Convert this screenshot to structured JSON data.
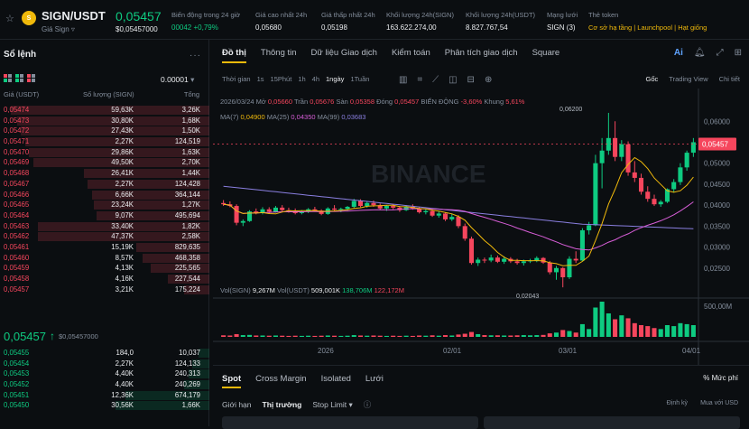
{
  "header": {
    "pair": "SIGN/USDT",
    "subtitle": "Giá Sign",
    "price": "0,05457",
    "price_usd": "$0,05457000",
    "stats": [
      {
        "label": "Biến động trong 24 giờ",
        "value": "00042 +0,79%",
        "color": "#0ecb81"
      },
      {
        "label": "Giá cao nhất 24h",
        "value": "0,05680",
        "color": "#eaecef"
      },
      {
        "label": "Giá thấp nhất 24h",
        "value": "0,05198",
        "color": "#eaecef"
      },
      {
        "label": "Khối lượng 24h(SIGN)",
        "value": "163.622.274,00",
        "color": "#eaecef"
      },
      {
        "label": "Khối lượng 24h(USDT)",
        "value": "8.827.767,54",
        "color": "#eaecef"
      },
      {
        "label": "Mạng lưới",
        "value": "SIGN (3)",
        "color": "#eaecef"
      },
      {
        "label": "Thẻ token",
        "value": "Cơ sở hạ tầng | Launchpool | Hạt giống",
        "color": "#f0b90b"
      }
    ]
  },
  "orderbook": {
    "title": "Sổ lệnh",
    "tick": "0.00001",
    "headers": {
      "price": "Giá (USDT)",
      "qty": "Số lượng (SIGN)",
      "total": "Tổng"
    },
    "asks": [
      {
        "p": "0,05474",
        "q": "59,63K",
        "t": "3,26K",
        "d": 0.95
      },
      {
        "p": "0,05473",
        "q": "30,80K",
        "t": "1,68K",
        "d": 0.92
      },
      {
        "p": "0,05472",
        "q": "27,43K",
        "t": "1,50K",
        "d": 0.9
      },
      {
        "p": "0,05471",
        "q": "2,27K",
        "t": "124,519",
        "d": 0.88
      },
      {
        "p": "0,05470",
        "q": "29,86K",
        "t": "1,63K",
        "d": 0.86
      },
      {
        "p": "0,05469",
        "q": "49,50K",
        "t": "2,70K",
        "d": 0.84
      },
      {
        "p": "0,05468",
        "q": "26,41K",
        "t": "1,44K",
        "d": 0.6
      },
      {
        "p": "0,05467",
        "q": "2,27K",
        "t": "124,428",
        "d": 0.58
      },
      {
        "p": "0,05466",
        "q": "6,66K",
        "t": "364,144",
        "d": 0.56
      },
      {
        "p": "0,05465",
        "q": "23,24K",
        "t": "1,27K",
        "d": 0.55
      },
      {
        "p": "0,05464",
        "q": "9,07K",
        "t": "495,694",
        "d": 0.54
      },
      {
        "p": "0,05463",
        "q": "33,40K",
        "t": "1,82K",
        "d": 0.82
      },
      {
        "p": "0,05462",
        "q": "47,37K",
        "t": "2,58K",
        "d": 0.82
      },
      {
        "p": "0,05461",
        "q": "15,19K",
        "t": "829,635",
        "d": 0.35
      },
      {
        "p": "0,05460",
        "q": "8,57K",
        "t": "468,358",
        "d": 0.32
      },
      {
        "p": "0,05459",
        "q": "4,13K",
        "t": "225,565",
        "d": 0.28
      },
      {
        "p": "0,05458",
        "q": "4,16K",
        "t": "227,544",
        "d": 0.2
      },
      {
        "p": "0,05457",
        "q": "3,21K",
        "t": "175,224",
        "d": 0.12
      }
    ],
    "mid": {
      "price": "0,05457",
      "arrow": "↑",
      "ref": "$0,05457000"
    },
    "bids": [
      {
        "p": "0,05455",
        "q": "184,0",
        "t": "10,037",
        "d": 0.05
      },
      {
        "p": "0,05454",
        "q": "2,27K",
        "t": "124,133",
        "d": 0.08
      },
      {
        "p": "0,05453",
        "q": "4,40K",
        "t": "240,313",
        "d": 0.1
      },
      {
        "p": "0,05452",
        "q": "4,40K",
        "t": "240,269",
        "d": 0.12
      },
      {
        "p": "0,05451",
        "q": "12,36K",
        "t": "674,179",
        "d": 0.4
      },
      {
        "p": "0,05450",
        "q": "30,56K",
        "t": "1,66K",
        "d": 0.45
      }
    ]
  },
  "chart_tabs": [
    "Đồ thị",
    "Thông tin",
    "Dữ liệu Giao dịch",
    "Kiểm toán",
    "Phân tích giao dịch",
    "Square"
  ],
  "chart_tab_icons": [
    "ai-icon",
    "bell-icon",
    "expand-icon",
    "grid-icon"
  ],
  "chart_tab_ai": "Ai",
  "timeframes": [
    "Thời gian",
    "1s",
    "15Phút",
    "1h",
    "4h",
    "1ngày",
    "1Tuần"
  ],
  "active_timeframe": "1ngày",
  "view_modes": [
    "Gốc",
    "Trading View",
    "Chi tiết"
  ],
  "ohlc": {
    "date": "2026/03/24",
    "open_l": "Mở",
    "open": "0,05660",
    "high_l": "Trần",
    "high": "0,05676",
    "low_l": "Sàn",
    "low": "0,05358",
    "close_l": "Đóng",
    "close": "0,05457",
    "chg_l": "BIẾN ĐỘNG",
    "chg": "-3,60%",
    "amp_l": "Khung",
    "amp": "5,61%"
  },
  "ma": {
    "ma7_l": "MA(7)",
    "ma7": "0,04900",
    "ma25_l": "MA(25)",
    "ma25": "0,04350",
    "ma99_l": "MA(99)",
    "ma99": "0,03683"
  },
  "vol": {
    "l1": "Vol(SIGN)",
    "v1": "9,267M",
    "l2": "Vol(USDT)",
    "v2": "509,001K",
    "v3": "138,706M",
    "v4": "122,172M"
  },
  "colors": {
    "up": "#0ecb81",
    "down": "#f6465d",
    "ma7": "#f0b90b",
    "ma25": "#d85ed8",
    "ma99": "#8a7fe0",
    "accent": "#f0b90b"
  },
  "chart_data": {
    "type": "line",
    "y_axis_ticks": [
      "0,06000",
      "0,05500",
      "0,05000",
      "0,04500",
      "0,04000",
      "0,03500",
      "0,03000",
      "0,02500"
    ],
    "x_axis_ticks": [
      "2026",
      "02/01",
      "03/01",
      "04/01"
    ],
    "ylim": [
      0.02,
      0.0635
    ],
    "vol_axis_tick": "500,00M",
    "last_price_label": "0,05457",
    "high_marker": "0,06200",
    "low_marker": "0,02043",
    "watermark": "BINANCE",
    "candles": [
      [
        0.0405,
        0.0412,
        0.0398,
        0.0402
      ],
      [
        0.0402,
        0.0409,
        0.0395,
        0.0398
      ],
      [
        0.0398,
        0.0402,
        0.0352,
        0.0358
      ],
      [
        0.0358,
        0.0366,
        0.035,
        0.0362
      ],
      [
        0.0362,
        0.0388,
        0.036,
        0.0385
      ],
      [
        0.0385,
        0.0392,
        0.0378,
        0.0381
      ],
      [
        0.0381,
        0.0395,
        0.0378,
        0.039
      ],
      [
        0.039,
        0.0395,
        0.038,
        0.0384
      ],
      [
        0.0384,
        0.0398,
        0.0382,
        0.0394
      ],
      [
        0.0394,
        0.04,
        0.0384,
        0.0388
      ],
      [
        0.0388,
        0.0394,
        0.0382,
        0.0386
      ],
      [
        0.0386,
        0.0392,
        0.0378,
        0.0381
      ],
      [
        0.0381,
        0.0388,
        0.0378,
        0.0384
      ],
      [
        0.0384,
        0.0393,
        0.0381,
        0.039
      ],
      [
        0.039,
        0.0396,
        0.0384,
        0.0387
      ],
      [
        0.0387,
        0.039,
        0.0376,
        0.0379
      ],
      [
        0.0379,
        0.0395,
        0.0377,
        0.0392
      ],
      [
        0.0392,
        0.04,
        0.0386,
        0.0389
      ],
      [
        0.0389,
        0.0394,
        0.0383,
        0.0391
      ],
      [
        0.0391,
        0.0398,
        0.0387,
        0.0396
      ],
      [
        0.0396,
        0.0415,
        0.0393,
        0.041
      ],
      [
        0.041,
        0.0414,
        0.0395,
        0.0398
      ],
      [
        0.0398,
        0.0408,
        0.0394,
        0.0405
      ],
      [
        0.0405,
        0.0411,
        0.0396,
        0.04
      ],
      [
        0.04,
        0.0404,
        0.0388,
        0.0392
      ],
      [
        0.0392,
        0.04,
        0.0386,
        0.0398
      ],
      [
        0.0398,
        0.0403,
        0.039,
        0.0394
      ],
      [
        0.0394,
        0.0398,
        0.0384,
        0.0388
      ],
      [
        0.0388,
        0.04,
        0.0386,
        0.0396
      ],
      [
        0.0396,
        0.0402,
        0.0389,
        0.0392
      ],
      [
        0.0392,
        0.0395,
        0.038,
        0.0383
      ],
      [
        0.0383,
        0.039,
        0.0378,
        0.0386
      ],
      [
        0.0386,
        0.039,
        0.0372,
        0.0375
      ],
      [
        0.0375,
        0.0385,
        0.037,
        0.038
      ],
      [
        0.038,
        0.0382,
        0.0362,
        0.0366
      ],
      [
        0.0366,
        0.038,
        0.0362,
        0.0372
      ],
      [
        0.0372,
        0.0376,
        0.0345,
        0.035
      ],
      [
        0.035,
        0.0356,
        0.0315,
        0.032
      ],
      [
        0.032,
        0.0325,
        0.0258,
        0.0262
      ],
      [
        0.0262,
        0.0275,
        0.0255,
        0.027
      ],
      [
        0.027,
        0.0275,
        0.0262,
        0.0268
      ],
      [
        0.0268,
        0.0282,
        0.0264,
        0.0275
      ],
      [
        0.0275,
        0.028,
        0.0262,
        0.0265
      ],
      [
        0.0265,
        0.0278,
        0.026,
        0.0272
      ],
      [
        0.0272,
        0.0276,
        0.0262,
        0.0266
      ],
      [
        0.0266,
        0.0272,
        0.0258,
        0.0262
      ],
      [
        0.0262,
        0.027,
        0.0256,
        0.0266
      ],
      [
        0.0266,
        0.0272,
        0.0262,
        0.0268
      ],
      [
        0.0268,
        0.0278,
        0.0264,
        0.0274
      ],
      [
        0.0274,
        0.0276,
        0.026,
        0.0263
      ],
      [
        0.0263,
        0.0267,
        0.0235,
        0.024
      ],
      [
        0.024,
        0.0255,
        0.0222,
        0.025
      ],
      [
        0.025,
        0.0252,
        0.0204,
        0.0228
      ],
      [
        0.0228,
        0.0278,
        0.0224,
        0.0272
      ],
      [
        0.0272,
        0.029,
        0.0262,
        0.0268
      ],
      [
        0.0268,
        0.0345,
        0.0266,
        0.034
      ],
      [
        0.034,
        0.036,
        0.033,
        0.0352
      ],
      [
        0.0352,
        0.052,
        0.035,
        0.05
      ],
      [
        0.05,
        0.056,
        0.044,
        0.053
      ],
      [
        0.053,
        0.062,
        0.052,
        0.056
      ],
      [
        0.056,
        0.06,
        0.0505,
        0.0515
      ],
      [
        0.0515,
        0.0555,
        0.0505,
        0.0545
      ],
      [
        0.0545,
        0.0552,
        0.047,
        0.0478
      ],
      [
        0.0478,
        0.0505,
        0.0455,
        0.0465
      ],
      [
        0.0465,
        0.0475,
        0.0425,
        0.0432
      ],
      [
        0.0432,
        0.0445,
        0.0408,
        0.0415
      ],
      [
        0.0415,
        0.0425,
        0.0398,
        0.0402
      ],
      [
        0.0402,
        0.0412,
        0.0396,
        0.0408
      ],
      [
        0.0408,
        0.044,
        0.0405,
        0.0438
      ],
      [
        0.0438,
        0.0462,
        0.043,
        0.0455
      ],
      [
        0.0455,
        0.05,
        0.0448,
        0.049
      ],
      [
        0.049,
        0.053,
        0.0482,
        0.0525
      ],
      [
        0.0525,
        0.056,
        0.0515,
        0.055
      ]
    ],
    "volumes": [
      8,
      7,
      14,
      9,
      10,
      7,
      7,
      6,
      7,
      6,
      5,
      6,
      5,
      6,
      5,
      6,
      7,
      6,
      5,
      6,
      9,
      7,
      6,
      7,
      6,
      5,
      6,
      5,
      6,
      5,
      7,
      6,
      8,
      6,
      9,
      7,
      12,
      16,
      25,
      14,
      9,
      8,
      8,
      7,
      7,
      8,
      9,
      8,
      9,
      10,
      18,
      22,
      35,
      30,
      22,
      65,
      40,
      150,
      180,
      120,
      90,
      110,
      95,
      70,
      60,
      55,
      45,
      40,
      60,
      55,
      70,
      65,
      60
    ]
  }
}
